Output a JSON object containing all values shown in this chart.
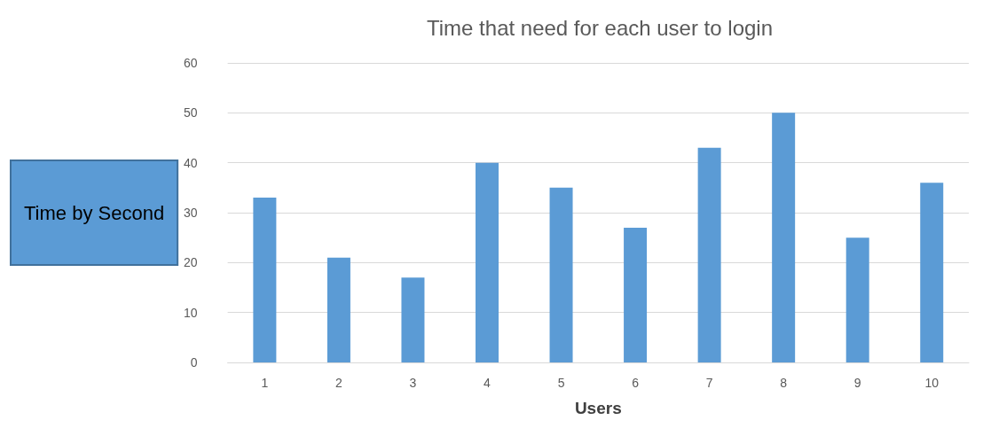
{
  "chart_data": {
    "type": "bar",
    "title": "Time that need for each user to login",
    "xlabel": "Users",
    "ylabel": "Time by Second",
    "categories": [
      "1",
      "2",
      "3",
      "4",
      "5",
      "6",
      "7",
      "8",
      "9",
      "10"
    ],
    "values": [
      33,
      21,
      17,
      40,
      35,
      27,
      43,
      50,
      25,
      36
    ],
    "color": "#5b9bd5",
    "ylim": [
      0,
      60
    ],
    "yticks": [
      0,
      10,
      20,
      30,
      40,
      50,
      60
    ],
    "grid": "y"
  }
}
